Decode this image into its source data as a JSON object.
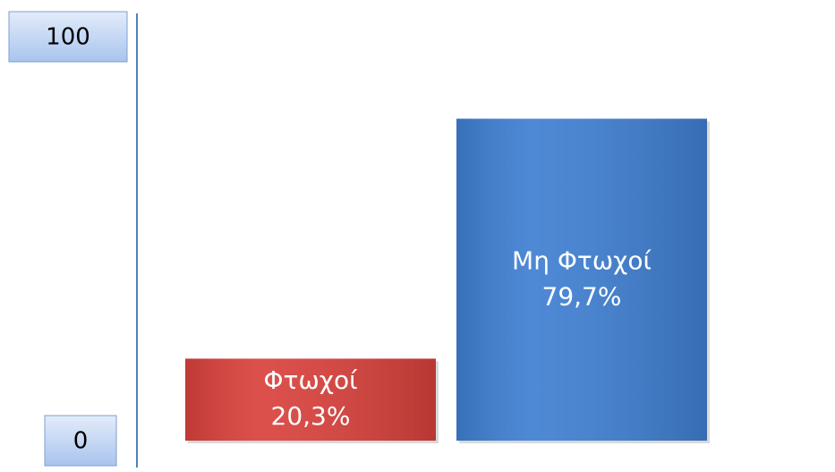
{
  "chart_data": {
    "type": "bar",
    "categories": [
      "Φτωχοί",
      "Μη Φτωχοί"
    ],
    "values": [
      20.3,
      79.7
    ],
    "value_labels": [
      "20,3%",
      "79,7%"
    ],
    "colors": [
      "#d9413c",
      "#3f7fd2"
    ],
    "ylim": [
      0,
      100
    ],
    "yticks": [
      0,
      100
    ]
  }
}
